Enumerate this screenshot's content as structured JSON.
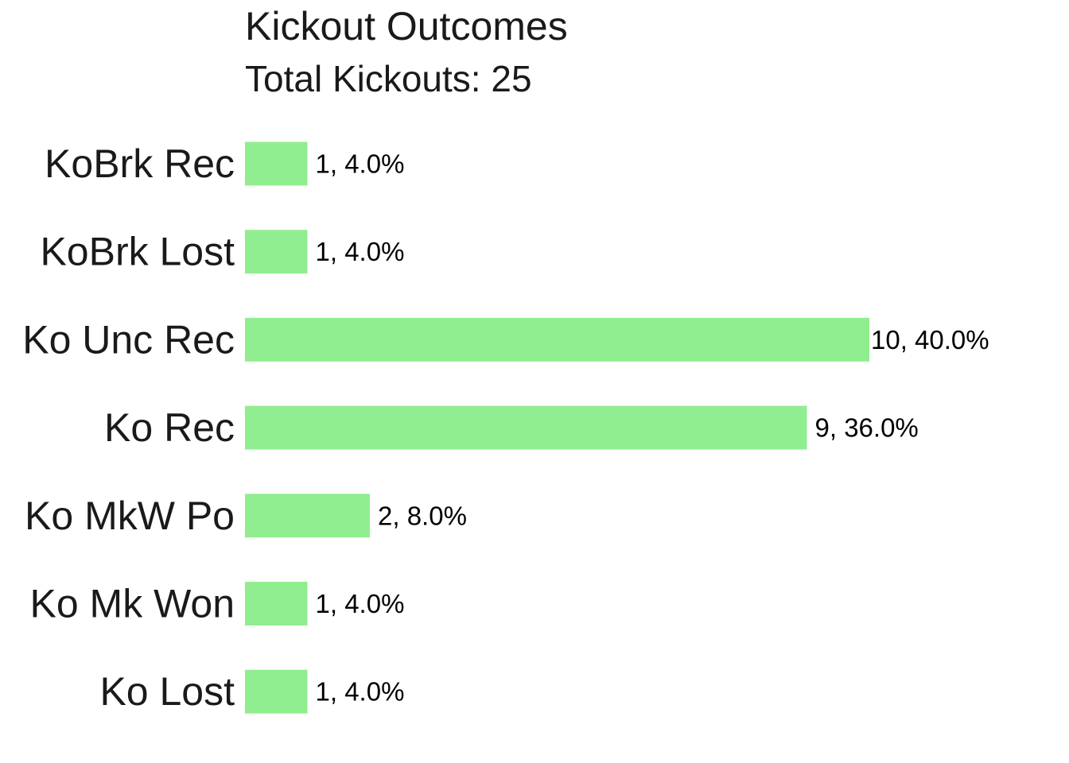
{
  "chart_data": {
    "type": "bar",
    "orientation": "horizontal",
    "title": "Kickout Outcomes",
    "subtitle": "Total Kickouts: 25",
    "xlabel": "",
    "ylabel": "",
    "categories": [
      "KoBrk Rec",
      "KoBrk Lost",
      "Ko Unc Rec",
      "Ko Rec",
      "Ko MkW Po",
      "Ko Mk Won",
      "Ko Lost"
    ],
    "values": [
      1,
      1,
      10,
      9,
      2,
      1,
      1
    ],
    "data_labels": [
      "1, 4.0%",
      "1, 4.0%",
      "10, 40.0%",
      "9, 36.0%",
      "2, 8.0%",
      "1, 4.0%",
      "1, 4.0%"
    ],
    "xlim": [
      0,
      10
    ],
    "grid": false,
    "legend": "none",
    "bar_color": "#90EE90",
    "text_color": "#1a1a1a"
  }
}
